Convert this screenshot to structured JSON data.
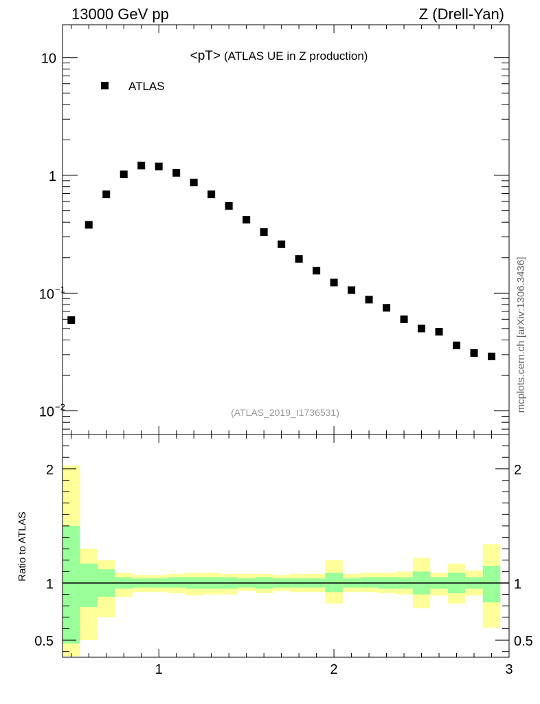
{
  "header": {
    "left": "13000 GeV pp",
    "right": "Z (Drell-Yan)"
  },
  "side_label": "mcplots.cern.ch [arXiv:1306.3436]",
  "chart_data": [
    {
      "type": "scatter",
      "title": "<pT> (ATLAS UE in Z production)",
      "title_main": "<pT>",
      "title_sub": "(ATLAS UE in Z production)",
      "watermark": "(ATLAS_2019_I1736531)",
      "yscale": "log",
      "xlim": [
        0.45,
        3.0
      ],
      "ylim": [
        0.0063,
        19
      ],
      "legend": {
        "entries": [
          "ATLAS"
        ],
        "placement": "top-left"
      },
      "y_ticks": [
        {
          "value": 10,
          "label": "10"
        },
        {
          "value": 1,
          "label": "1"
        },
        {
          "value": 0.1,
          "label": "10",
          "exp": "−1"
        },
        {
          "value": 0.01,
          "label": "10",
          "exp": "−2"
        }
      ],
      "series": [
        {
          "name": "ATLAS",
          "x": [
            0.5,
            0.6,
            0.7,
            0.8,
            0.9,
            1.0,
            1.1,
            1.2,
            1.3,
            1.4,
            1.5,
            1.6,
            1.7,
            1.8,
            1.9,
            2.0,
            2.1,
            2.2,
            2.3,
            2.4,
            2.5,
            2.6,
            2.7,
            2.8,
            2.9
          ],
          "y": [
            0.059,
            0.38,
            0.69,
            1.02,
            1.21,
            1.19,
            1.05,
            0.87,
            0.69,
            0.55,
            0.42,
            0.33,
            0.26,
            0.195,
            0.155,
            0.123,
            0.106,
            0.088,
            0.075,
            0.06,
            0.05,
            0.047,
            0.036,
            0.031,
            0.029
          ]
        }
      ]
    },
    {
      "type": "area",
      "ylabel": "Ratio to ATLAS",
      "xlim": [
        0.45,
        3.0
      ],
      "ylim": [
        0.35,
        2.3
      ],
      "reference_line": 1.0,
      "x_ticks": [
        {
          "value": 1,
          "label": "1"
        },
        {
          "value": 2,
          "label": "2"
        },
        {
          "value": 3,
          "label": "3"
        }
      ],
      "y_ticks": [
        {
          "value": 2,
          "label": "2"
        },
        {
          "value": 1,
          "label": "1"
        },
        {
          "value": 0.5,
          "label": "0.5"
        }
      ],
      "bins": [
        0.45,
        0.55,
        0.65,
        0.75,
        0.85,
        0.95,
        1.05,
        1.15,
        1.25,
        1.35,
        1.45,
        1.55,
        1.65,
        1.75,
        1.85,
        1.95,
        2.05,
        2.15,
        2.25,
        2.35,
        2.45,
        2.55,
        2.65,
        2.75,
        2.85,
        2.95
      ],
      "bands": [
        {
          "name": "total uncertainty",
          "color": "#ffff99",
          "lo": [
            0.36,
            0.5,
            0.7,
            0.88,
            0.92,
            0.92,
            0.91,
            0.89,
            0.9,
            0.9,
            0.93,
            0.91,
            0.93,
            0.92,
            0.92,
            0.82,
            0.92,
            0.92,
            0.91,
            0.9,
            0.78,
            0.89,
            0.82,
            0.89,
            0.61
          ],
          "hi": [
            2.03,
            1.3,
            1.2,
            1.09,
            1.07,
            1.07,
            1.08,
            1.09,
            1.09,
            1.08,
            1.08,
            1.08,
            1.07,
            1.08,
            1.08,
            1.2,
            1.08,
            1.09,
            1.09,
            1.1,
            1.22,
            1.09,
            1.17,
            1.11,
            1.34
          ]
        },
        {
          "name": "statistical uncertainty",
          "color": "#99ff99",
          "lo": [
            0.47,
            0.79,
            0.88,
            0.95,
            0.96,
            0.96,
            0.96,
            0.95,
            0.95,
            0.95,
            0.96,
            0.95,
            0.96,
            0.96,
            0.96,
            0.92,
            0.96,
            0.96,
            0.95,
            0.95,
            0.9,
            0.95,
            0.91,
            0.95,
            0.83
          ],
          "hi": [
            1.5,
            1.17,
            1.12,
            1.05,
            1.04,
            1.04,
            1.05,
            1.05,
            1.05,
            1.05,
            1.04,
            1.05,
            1.04,
            1.04,
            1.04,
            1.09,
            1.04,
            1.05,
            1.05,
            1.05,
            1.1,
            1.05,
            1.09,
            1.05,
            1.15
          ]
        }
      ]
    }
  ]
}
